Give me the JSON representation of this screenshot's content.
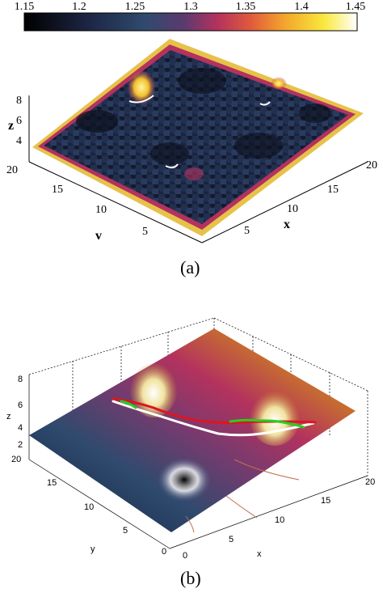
{
  "figure": {
    "panel_a": {
      "caption": "(a)",
      "colorbar": {
        "ticks": [
          "1.15",
          "1.2",
          "1.25",
          "1.3",
          "1.35",
          "1.4",
          "1.45"
        ],
        "min": 1.15,
        "max": 1.45,
        "colormap": [
          "#000000",
          "#1b2340",
          "#2f4a6e",
          "#5b3a6e",
          "#b3325e",
          "#e05a3c",
          "#f3a42c",
          "#f9e83c",
          "#ffffff"
        ]
      },
      "axes": {
        "z_label": "z",
        "z_ticks": [
          "8",
          "6",
          "4"
        ],
        "y_label": "v",
        "y_ticks": [
          "20",
          "15",
          "10",
          "5"
        ],
        "x_label": "x",
        "x_ticks": [
          "5",
          "10",
          "15",
          "20"
        ]
      }
    },
    "panel_b": {
      "caption": "(b)",
      "axes": {
        "z_label": "z",
        "z_ticks": [
          "8",
          "6",
          "4",
          "2"
        ],
        "y_label": "y",
        "y_ticks": [
          "20",
          "15",
          "10",
          "5",
          "0"
        ],
        "x_label": "x",
        "x_ticks": [
          "0",
          "5",
          "10",
          "15",
          "20"
        ]
      },
      "path_colors": {
        "white": "#ffffff",
        "red": "#e0141e",
        "green": "#22d122",
        "contour": "#c0704a"
      }
    }
  }
}
